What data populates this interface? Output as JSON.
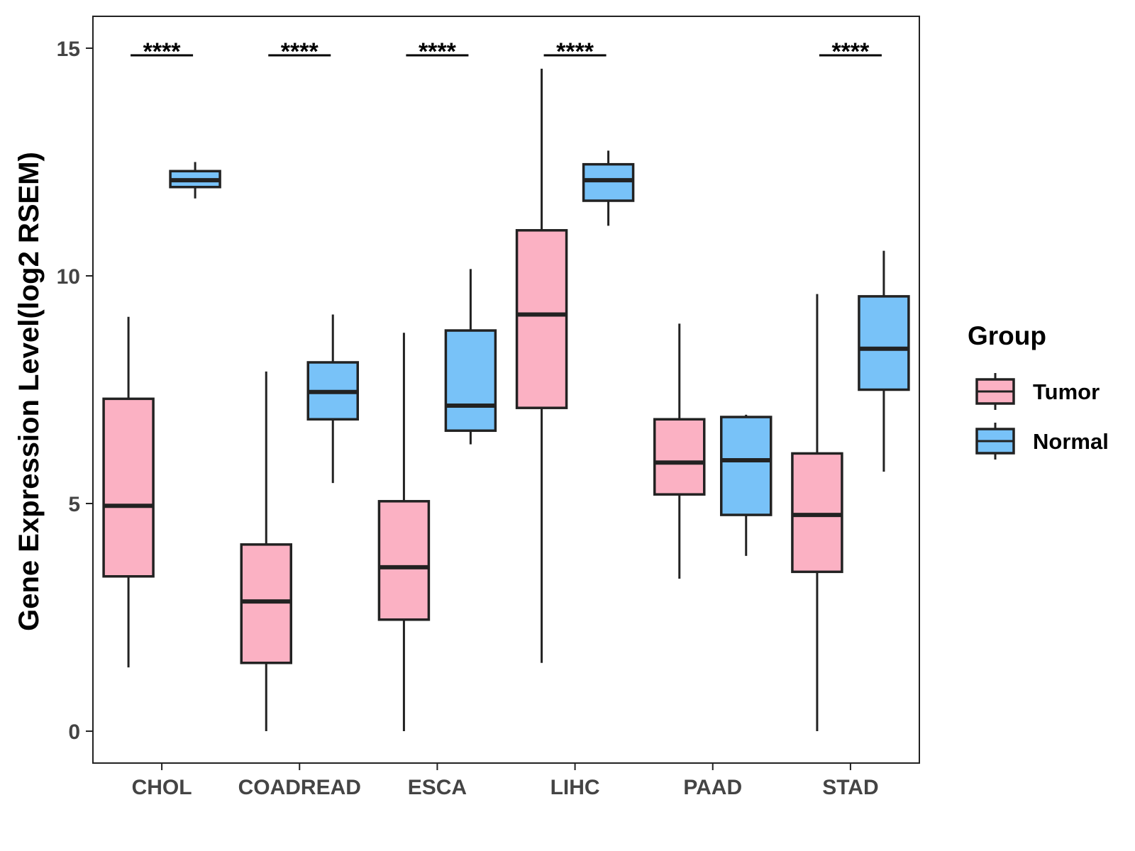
{
  "chart_data": {
    "type": "boxplot",
    "title": "",
    "xlabel": "",
    "ylabel": "Gene Expression Level(log2 RSEM)",
    "ylim": [
      -0.7,
      15.7
    ],
    "y_ticks": [
      0,
      5,
      10,
      15
    ],
    "y_tick_labels": [
      "0",
      "5",
      "10",
      "15"
    ],
    "grid": false,
    "categories": [
      "CHOL",
      "COADREAD",
      "ESCA",
      "LIHC",
      "PAAD",
      "STAD"
    ],
    "significance": [
      "****",
      "****",
      "****",
      "****",
      "",
      "****"
    ],
    "legend": {
      "title": "Group",
      "position": "right",
      "entries": [
        "Tumor",
        "Normal"
      ]
    },
    "series": [
      {
        "name": "Tumor",
        "color": "#FBB1C3",
        "boxes": [
          {
            "min": 1.4,
            "q1": 3.4,
            "median": 4.95,
            "q3": 7.3,
            "max": 9.1
          },
          {
            "min": 0.0,
            "q1": 1.5,
            "median": 2.85,
            "q3": 4.1,
            "max": 7.9
          },
          {
            "min": 0.0,
            "q1": 2.45,
            "median": 3.6,
            "q3": 5.05,
            "max": 8.75
          },
          {
            "min": 1.5,
            "q1": 7.1,
            "median": 9.15,
            "q3": 11.0,
            "max": 14.55
          },
          {
            "min": 3.35,
            "q1": 5.2,
            "median": 5.9,
            "q3": 6.85,
            "max": 8.95
          },
          {
            "min": 0.0,
            "q1": 3.5,
            "median": 4.75,
            "q3": 6.1,
            "max": 9.6
          }
        ]
      },
      {
        "name": "Normal",
        "color": "#78C2F8",
        "boxes": [
          {
            "min": 11.7,
            "q1": 11.95,
            "median": 12.1,
            "q3": 12.3,
            "max": 12.5
          },
          {
            "min": 5.45,
            "q1": 6.85,
            "median": 7.45,
            "q3": 8.1,
            "max": 9.15
          },
          {
            "min": 6.3,
            "q1": 6.6,
            "median": 7.15,
            "q3": 8.8,
            "max": 10.15
          },
          {
            "min": 11.1,
            "q1": 11.65,
            "median": 12.1,
            "q3": 12.45,
            "max": 12.75
          },
          {
            "min": 3.85,
            "q1": 4.75,
            "median": 5.95,
            "q3": 6.9,
            "max": 6.95
          },
          {
            "min": 5.7,
            "q1": 7.5,
            "median": 8.4,
            "q3": 9.55,
            "max": 10.55
          }
        ]
      }
    ]
  }
}
